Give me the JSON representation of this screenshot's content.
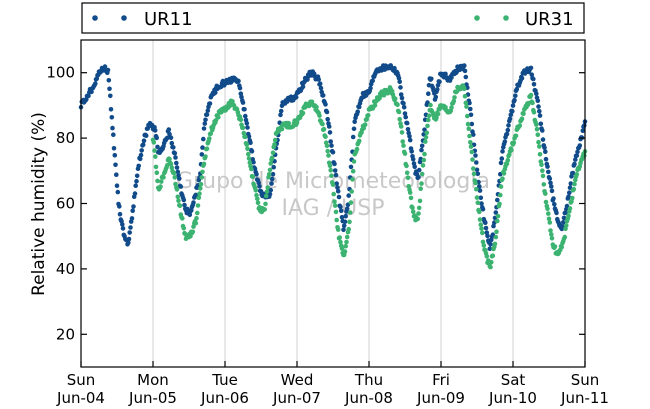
{
  "chart_data": {
    "type": "scatter",
    "xlabel": "",
    "ylabel": "Relative humidity (%)",
    "ylim": [
      10,
      110
    ],
    "xlim_days": [
      0,
      7
    ],
    "yticks": [
      20,
      40,
      60,
      80,
      100
    ],
    "xticks": [
      {
        "day": "Sun",
        "date": "Jun-04"
      },
      {
        "day": "Mon",
        "date": "Jun-05"
      },
      {
        "day": "Tue",
        "date": "Jun-06"
      },
      {
        "day": "Wed",
        "date": "Jun-07"
      },
      {
        "day": "Thu",
        "date": "Jun-08"
      },
      {
        "day": "Fri",
        "date": "Jun-09"
      },
      {
        "day": "Sat",
        "date": "Jun-10"
      },
      {
        "day": "Sun",
        "date": "Jun-11"
      }
    ],
    "grid": "vertical",
    "legend_position": "top (outside)",
    "watermark": [
      "Grupo de Micrometeorologia",
      "IAG / USP"
    ],
    "colors": {
      "UR11": "#114b8a",
      "UR31": "#3cb371"
    },
    "series": [
      {
        "name": "UR11",
        "color": "#114b8a",
        "keypoints": [
          [
            0.0,
            90
          ],
          [
            0.15,
            95
          ],
          [
            0.25,
            100
          ],
          [
            0.33,
            101.5
          ],
          [
            0.38,
            100
          ],
          [
            0.45,
            80
          ],
          [
            0.52,
            60
          ],
          [
            0.58,
            52
          ],
          [
            0.65,
            47
          ],
          [
            0.72,
            58
          ],
          [
            0.8,
            72
          ],
          [
            0.88,
            80
          ],
          [
            0.95,
            84
          ],
          [
            1.03,
            83
          ],
          [
            1.08,
            75
          ],
          [
            1.15,
            78
          ],
          [
            1.22,
            82
          ],
          [
            1.3,
            75
          ],
          [
            1.38,
            65
          ],
          [
            1.45,
            58
          ],
          [
            1.52,
            57
          ],
          [
            1.65,
            68
          ],
          [
            1.72,
            85
          ],
          [
            1.8,
            92
          ],
          [
            1.9,
            96
          ],
          [
            2.0,
            97
          ],
          [
            2.1,
            98
          ],
          [
            2.18,
            98
          ],
          [
            2.3,
            85
          ],
          [
            2.4,
            72
          ],
          [
            2.5,
            63
          ],
          [
            2.62,
            62
          ],
          [
            2.7,
            75
          ],
          [
            2.8,
            91
          ],
          [
            2.92,
            92
          ],
          [
            3.0,
            93
          ],
          [
            3.12,
            98
          ],
          [
            3.2,
            100
          ],
          [
            3.3,
            98
          ],
          [
            3.4,
            90
          ],
          [
            3.5,
            75
          ],
          [
            3.58,
            62
          ],
          [
            3.65,
            52
          ],
          [
            3.72,
            62
          ],
          [
            3.8,
            85
          ],
          [
            3.9,
            93
          ],
          [
            4.0,
            94
          ],
          [
            4.1,
            101
          ],
          [
            4.3,
            102
          ],
          [
            4.4,
            100
          ],
          [
            4.48,
            90
          ],
          [
            4.55,
            82
          ],
          [
            4.62,
            72
          ],
          [
            4.68,
            67
          ],
          [
            4.78,
            85
          ],
          [
            4.85,
            99
          ],
          [
            4.92,
            92
          ],
          [
            5.0,
            100
          ],
          [
            5.12,
            98
          ],
          [
            5.22,
            101
          ],
          [
            5.32,
            102
          ],
          [
            5.4,
            90
          ],
          [
            5.5,
            70
          ],
          [
            5.6,
            55
          ],
          [
            5.68,
            46
          ],
          [
            5.75,
            55
          ],
          [
            5.85,
            75
          ],
          [
            5.95,
            85
          ],
          [
            6.05,
            95
          ],
          [
            6.15,
            100
          ],
          [
            6.25,
            101
          ],
          [
            6.35,
            90
          ],
          [
            6.45,
            75
          ],
          [
            6.55,
            62
          ],
          [
            6.62,
            55
          ],
          [
            6.68,
            52
          ],
          [
            6.75,
            60
          ],
          [
            6.85,
            72
          ],
          [
            6.95,
            80
          ],
          [
            7.0,
            85
          ]
        ]
      },
      {
        "name": "UR31",
        "color": "#3cb371",
        "keypoints": [
          [
            1.0,
            80
          ],
          [
            1.05,
            70
          ],
          [
            1.08,
            64
          ],
          [
            1.15,
            69
          ],
          [
            1.22,
            74
          ],
          [
            1.3,
            68
          ],
          [
            1.38,
            58
          ],
          [
            1.45,
            50
          ],
          [
            1.52,
            50
          ],
          [
            1.6,
            55
          ],
          [
            1.7,
            72
          ],
          [
            1.8,
            82
          ],
          [
            1.9,
            87
          ],
          [
            2.0,
            89
          ],
          [
            2.1,
            91
          ],
          [
            2.18,
            88
          ],
          [
            2.28,
            80
          ],
          [
            2.38,
            68
          ],
          [
            2.48,
            58
          ],
          [
            2.55,
            58
          ],
          [
            2.62,
            70
          ],
          [
            2.72,
            82
          ],
          [
            2.82,
            84
          ],
          [
            2.92,
            84
          ],
          [
            3.0,
            85
          ],
          [
            3.12,
            90
          ],
          [
            3.2,
            91
          ],
          [
            3.3,
            88
          ],
          [
            3.4,
            80
          ],
          [
            3.5,
            65
          ],
          [
            3.58,
            50
          ],
          [
            3.65,
            44
          ],
          [
            3.72,
            52
          ],
          [
            3.8,
            75
          ],
          [
            3.9,
            82
          ],
          [
            4.0,
            88
          ],
          [
            4.15,
            93
          ],
          [
            4.3,
            95
          ],
          [
            4.4,
            90
          ],
          [
            4.48,
            78
          ],
          [
            4.55,
            66
          ],
          [
            4.62,
            56
          ],
          [
            4.68,
            55
          ],
          [
            4.78,
            78
          ],
          [
            4.85,
            90
          ],
          [
            4.92,
            86
          ],
          [
            5.0,
            90
          ],
          [
            5.12,
            88
          ],
          [
            5.22,
            95
          ],
          [
            5.32,
            96
          ],
          [
            5.4,
            80
          ],
          [
            5.5,
            62
          ],
          [
            5.6,
            46
          ],
          [
            5.68,
            40
          ],
          [
            5.75,
            48
          ],
          [
            5.85,
            68
          ],
          [
            5.95,
            75
          ],
          [
            6.05,
            82
          ],
          [
            6.15,
            88
          ],
          [
            6.25,
            93
          ],
          [
            6.35,
            80
          ],
          [
            6.45,
            62
          ],
          [
            6.55,
            48
          ],
          [
            6.62,
            44
          ],
          [
            6.7,
            48
          ],
          [
            6.8,
            60
          ],
          [
            6.9,
            70
          ],
          [
            7.0,
            76
          ]
        ]
      }
    ]
  }
}
